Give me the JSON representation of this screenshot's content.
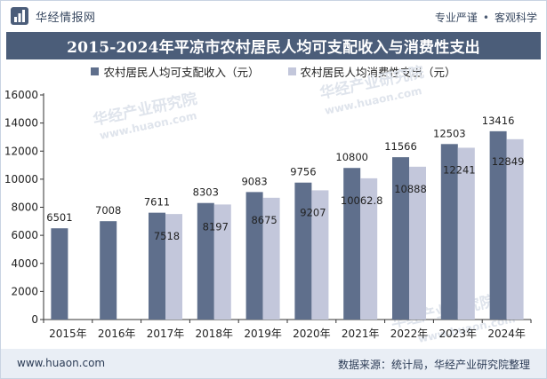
{
  "header": {
    "brand_name": "华经情报网",
    "tagline_1": "专业严谨",
    "tagline_separator": "•",
    "tagline_2": "客观科学"
  },
  "watermarks": [
    "华经产业研究院",
    "www.huaon.com",
    "华经产业研究院",
    "www.huaon.com",
    "华经产业研究院",
    "www.huaon.com"
  ],
  "footer": {
    "url": "www.huaon.com",
    "source": "数据来源：统计局，华经产业研究院整理"
  },
  "colors": {
    "title_bar": "#4b5d79",
    "series_income": "#5f6f8c",
    "series_expense": "#c3c7db",
    "footer_bg": "#e9eef5"
  },
  "chart_data": {
    "type": "bar",
    "title": "2015-2024年平凉市农村居民人均可支配收入与消费性支出",
    "categories": [
      "2015年",
      "2016年",
      "2017年",
      "2018年",
      "2019年",
      "2020年",
      "2021年",
      "2022年",
      "2023年",
      "2024年"
    ],
    "series": [
      {
        "name": "农村居民人均可支配收入（元）",
        "values": [
          6501,
          7008,
          7611,
          8303,
          9083,
          9756,
          10800,
          11566,
          12503,
          13416
        ],
        "labels": [
          "6501",
          "7008",
          "7611",
          "8303",
          "9083",
          "9756",
          "10800",
          "11566",
          "12503",
          "13416"
        ],
        "color": "#5f6f8c"
      },
      {
        "name": "农村居民人均消费性支出（元）",
        "values": [
          null,
          null,
          7518,
          8197,
          8675,
          9207,
          10062.8,
          10888,
          12241,
          12849
        ],
        "labels": [
          null,
          null,
          "7518",
          "8197",
          "8675",
          "9207",
          "10062.8",
          "10888",
          "12241",
          "12849"
        ],
        "color": "#c3c7db"
      }
    ],
    "ylim": [
      0,
      16000
    ],
    "yticks": [
      0,
      2000,
      4000,
      6000,
      8000,
      10000,
      12000,
      14000,
      16000
    ],
    "xlabel": "",
    "ylabel": "",
    "grid": false,
    "legend_position": "top"
  }
}
